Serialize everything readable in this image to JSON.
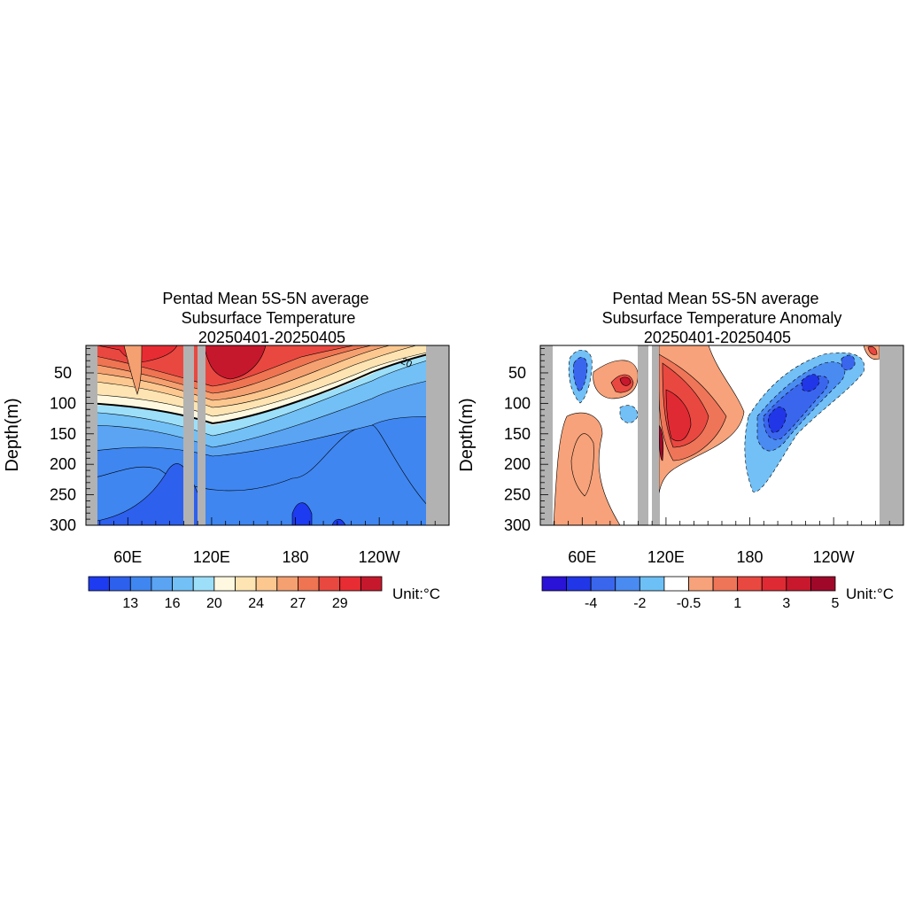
{
  "chart_data": [
    {
      "type": "heatmap",
      "title_lines": [
        "Pentad Mean 5S-5N average",
        "Subsurface Temperature",
        "20250401-20250405"
      ],
      "ylabel": "Depth(m)",
      "xlabel": "",
      "x_ticks": [
        "60E",
        "120E",
        "180",
        "120W"
      ],
      "x_tick_lon": [
        60,
        120,
        180,
        240
      ],
      "y_ticks": [
        "50",
        "100",
        "150",
        "200",
        "250",
        "300"
      ],
      "y_tick_depth": [
        50,
        100,
        150,
        200,
        250,
        300
      ],
      "xlim_lon": [
        30,
        290
      ],
      "ylim_depth": [
        5,
        300
      ],
      "land_mask_lon": [
        [
          30,
          39
        ],
        [
          109,
          115
        ],
        [
          117,
          123
        ],
        [
          274,
          290
        ]
      ],
      "contour_label": "20",
      "colorbar": {
        "colors": [
          "#1d3bf0",
          "#2e60ee",
          "#3f86f0",
          "#5aa4f3",
          "#72c0f6",
          "#9ddff9",
          "#fff8e0",
          "#fde4b2",
          "#fcc890",
          "#f5a070",
          "#ee7452",
          "#e94840",
          "#e72d33",
          "#c6182c"
        ],
        "labels": [
          "13",
          "16",
          "20",
          "24",
          "27",
          "29"
        ]
      },
      "unit_label": "Unit:°C"
    },
    {
      "type": "heatmap",
      "title_lines": [
        "Pentad Mean 5S-5N average",
        "Subsurface Temperature Anomaly",
        "20250401-20250405"
      ],
      "ylabel": "Depth(m)",
      "xlabel": "",
      "x_ticks": [
        "60E",
        "120E",
        "180",
        "120W"
      ],
      "x_tick_lon": [
        60,
        120,
        180,
        240
      ],
      "y_ticks": [
        "50",
        "100",
        "150",
        "200",
        "250",
        "300"
      ],
      "y_tick_depth": [
        50,
        100,
        150,
        200,
        250,
        300
      ],
      "xlim_lon": [
        30,
        290
      ],
      "ylim_depth": [
        5,
        300
      ],
      "land_mask_lon": [
        [
          30,
          39
        ],
        [
          109,
          115
        ],
        [
          117,
          123
        ],
        [
          274,
          290
        ]
      ],
      "colorbar": {
        "colors": [
          "#2a12d6",
          "#2136e6",
          "#3a66ee",
          "#4a8bf1",
          "#6cc0f5",
          "#ffffff",
          "#f7a27a",
          "#ef7558",
          "#e94840",
          "#e02a33",
          "#c8182d",
          "#a0082a"
        ],
        "labels": [
          "-4",
          "-2",
          "-0.5",
          "1",
          "3",
          "5"
        ]
      },
      "unit_label": "Unit:°C"
    }
  ]
}
